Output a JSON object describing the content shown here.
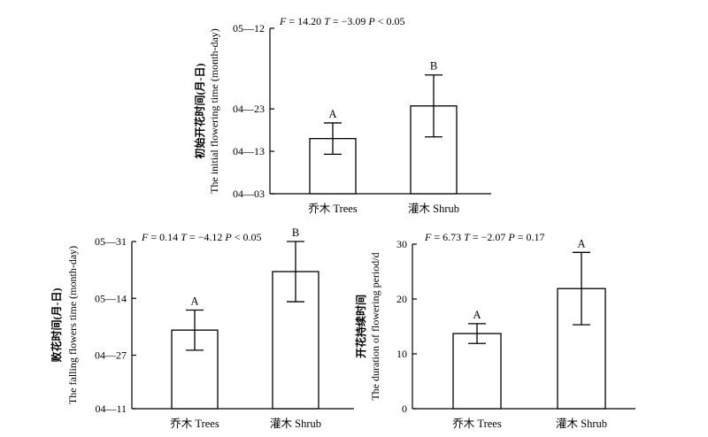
{
  "chart_data": [
    {
      "type": "bar",
      "ylabel_cn": "初始开花时间(月-日)",
      "ylabel_en": "The initial flowering time (month-day)",
      "yticks": [
        "04—03",
        "04—13",
        "04—23",
        "05—12"
      ],
      "ytick_days": [
        0,
        10,
        20,
        39
      ],
      "ylim": [
        0,
        39
      ],
      "categories": [
        "乔木 Trees",
        "灌木 Shrub"
      ],
      "values": [
        13,
        20.7
      ],
      "errors": [
        3.7,
        7.3
      ],
      "letters": [
        "A",
        "B"
      ],
      "stats": {
        "F": "14.20",
        "T": "−3.09",
        "P": "< 0.05"
      }
    },
    {
      "type": "bar",
      "ylabel_cn": "败花时间(月-日)",
      "ylabel_en": "The falling flowers time (month-day)",
      "yticks": [
        "04—11",
        "04—27",
        "05—14",
        "05—31"
      ],
      "ytick_days": [
        0,
        16,
        33,
        50
      ],
      "ylim": [
        0,
        50
      ],
      "categories": [
        "乔木 Trees",
        "灌木 Shrub"
      ],
      "values": [
        23.5,
        41
      ],
      "errors": [
        6,
        9
      ],
      "letters": [
        "A",
        "B"
      ],
      "stats": {
        "F": "0.14",
        "T": "−4.12",
        "P": "< 0.05"
      }
    },
    {
      "type": "bar",
      "ylabel_cn": "开花持续时间",
      "ylabel_en": "The duration of flowering period/d",
      "yticks": [
        "0",
        "10",
        "20",
        "30"
      ],
      "ytick_days": [
        0,
        10,
        20,
        30
      ],
      "ylim": [
        0,
        30
      ],
      "categories": [
        "乔木 Trees",
        "灌木 Shrub"
      ],
      "values": [
        13.7,
        21.9
      ],
      "errors": [
        1.8,
        6.6
      ],
      "letters": [
        "A",
        "A"
      ],
      "stats": {
        "F": "6.73",
        "T": "−2.07",
        "P": "= 0.17"
      }
    }
  ]
}
